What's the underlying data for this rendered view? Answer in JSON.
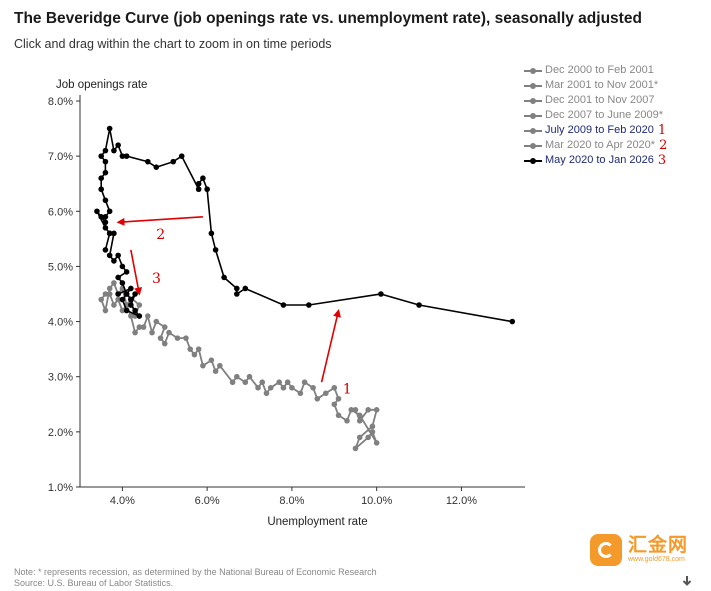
{
  "header": {
    "title": "The Beveridge Curve (job openings rate vs. unemployment rate), seasonally adjusted",
    "subtitle": "Click and drag within the chart to zoom in on time periods"
  },
  "chart_data": {
    "type": "scatter",
    "title": "The Beveridge Curve (job openings rate vs. unemployment rate), seasonally adjusted",
    "xlabel": "Unemployment rate",
    "ylabel": "Job openings rate",
    "xlim": [
      3.0,
      13.5
    ],
    "ylim": [
      1.0,
      8.0
    ],
    "xticks": [
      4.0,
      6.0,
      8.0,
      10.0,
      12.0
    ],
    "xtick_labels": [
      "4.0%",
      "6.0%",
      "8.0%",
      "10.0%",
      "12.0%"
    ],
    "yticks": [
      1.0,
      2.0,
      3.0,
      4.0,
      5.0,
      6.0,
      7.0,
      8.0
    ],
    "ytick_labels": [
      "1.0%",
      "2.0%",
      "3.0%",
      "4.0%",
      "5.0%",
      "6.0%",
      "7.0%",
      "8.0%"
    ],
    "legend_position": "top-right",
    "series": [
      {
        "name": "Dec 2000 to Feb 2001",
        "color": "#808080",
        "points": []
      },
      {
        "name": "Mar 2001 to Nov 2001*",
        "color": "#808080",
        "points": []
      },
      {
        "name": "Dec 2001 to Nov 2007",
        "color": "#808080",
        "points": []
      },
      {
        "name": "Dec 2007 to June 2009*",
        "color": "#808080",
        "points": []
      },
      {
        "name": "July 2009 to Feb 2020",
        "color": "#808080",
        "annotation": "1",
        "active": true,
        "points": [
          [
            9.5,
            2.4
          ],
          [
            9.6,
            2.2
          ],
          [
            9.8,
            2.4
          ],
          [
            10.0,
            2.4
          ],
          [
            9.9,
            2.1
          ],
          [
            9.6,
            1.9
          ],
          [
            9.5,
            1.7
          ],
          [
            9.8,
            1.9
          ],
          [
            9.9,
            2.0
          ],
          [
            10.0,
            1.8
          ],
          [
            9.6,
            2.3
          ],
          [
            9.4,
            2.4
          ],
          [
            9.3,
            2.2
          ],
          [
            9.1,
            2.3
          ],
          [
            9.0,
            2.5
          ],
          [
            9.1,
            2.6
          ],
          [
            9.0,
            2.8
          ],
          [
            8.8,
            2.7
          ],
          [
            8.6,
            2.6
          ],
          [
            8.5,
            2.8
          ],
          [
            8.3,
            2.9
          ],
          [
            8.2,
            2.7
          ],
          [
            8.0,
            2.8
          ],
          [
            7.9,
            2.9
          ],
          [
            7.8,
            2.8
          ],
          [
            7.7,
            2.9
          ],
          [
            7.5,
            2.8
          ],
          [
            7.4,
            2.7
          ],
          [
            7.3,
            2.9
          ],
          [
            7.2,
            2.8
          ],
          [
            7.0,
            3.0
          ],
          [
            6.9,
            2.9
          ],
          [
            6.7,
            3.0
          ],
          [
            6.6,
            2.9
          ],
          [
            6.3,
            3.2
          ],
          [
            6.2,
            3.1
          ],
          [
            6.1,
            3.3
          ],
          [
            5.9,
            3.2
          ],
          [
            5.8,
            3.5
          ],
          [
            5.7,
            3.4
          ],
          [
            5.6,
            3.5
          ],
          [
            5.5,
            3.7
          ],
          [
            5.3,
            3.7
          ],
          [
            5.1,
            3.8
          ],
          [
            5.0,
            3.6
          ],
          [
            4.9,
            3.7
          ],
          [
            5.0,
            3.9
          ],
          [
            4.8,
            4.0
          ],
          [
            4.7,
            3.8
          ],
          [
            4.6,
            4.1
          ],
          [
            4.5,
            3.9
          ],
          [
            4.4,
            3.9
          ],
          [
            4.3,
            3.8
          ],
          [
            4.2,
            4.1
          ],
          [
            4.1,
            4.3
          ],
          [
            4.0,
            4.2
          ],
          [
            3.9,
            4.4
          ],
          [
            3.8,
            4.3
          ],
          [
            3.7,
            4.5
          ],
          [
            3.6,
            4.5
          ],
          [
            3.5,
            4.4
          ],
          [
            3.6,
            4.2
          ],
          [
            3.7,
            4.6
          ],
          [
            3.8,
            4.7
          ],
          [
            3.9,
            4.5
          ],
          [
            4.0,
            4.6
          ],
          [
            4.1,
            4.3
          ],
          [
            4.2,
            4.4
          ],
          [
            4.3,
            4.1
          ],
          [
            4.4,
            4.3
          ],
          [
            4.1,
            4.5
          ]
        ]
      },
      {
        "name": "Mar 2020 to Apr 2020*",
        "color": "#808080",
        "annotation": "2",
        "points": []
      },
      {
        "name": "May 2020 to Jan 2026",
        "color": "#000000",
        "annotation": "3",
        "active": true,
        "points": [
          [
            13.2,
            4.0
          ],
          [
            11.0,
            4.3
          ],
          [
            10.1,
            4.5
          ],
          [
            8.4,
            4.3
          ],
          [
            7.8,
            4.3
          ],
          [
            6.9,
            4.6
          ],
          [
            6.7,
            4.5
          ],
          [
            6.7,
            4.6
          ],
          [
            6.4,
            4.8
          ],
          [
            6.2,
            5.3
          ],
          [
            6.1,
            5.6
          ],
          [
            6.0,
            6.4
          ],
          [
            5.9,
            6.6
          ],
          [
            5.8,
            6.5
          ],
          [
            5.8,
            6.4
          ],
          [
            5.4,
            7.0
          ],
          [
            5.2,
            6.9
          ],
          [
            4.8,
            6.8
          ],
          [
            4.6,
            6.9
          ],
          [
            4.1,
            7.0
          ],
          [
            4.0,
            7.0
          ],
          [
            3.9,
            7.2
          ],
          [
            3.8,
            7.1
          ],
          [
            3.7,
            7.5
          ],
          [
            3.6,
            7.1
          ],
          [
            3.5,
            7.0
          ],
          [
            3.6,
            6.9
          ],
          [
            3.6,
            6.7
          ],
          [
            3.5,
            6.6
          ],
          [
            3.5,
            6.4
          ],
          [
            3.6,
            6.2
          ],
          [
            3.7,
            6.0
          ],
          [
            3.6,
            5.9
          ],
          [
            3.6,
            5.8
          ],
          [
            3.5,
            5.9
          ],
          [
            3.4,
            6.0
          ],
          [
            3.6,
            5.7
          ],
          [
            3.7,
            5.6
          ],
          [
            3.6,
            5.3
          ],
          [
            3.7,
            5.6
          ],
          [
            3.8,
            5.6
          ],
          [
            3.7,
            5.2
          ],
          [
            3.8,
            5.1
          ],
          [
            3.9,
            5.2
          ],
          [
            4.0,
            5.0
          ],
          [
            4.1,
            4.9
          ],
          [
            3.9,
            4.8
          ],
          [
            4.0,
            4.7
          ],
          [
            4.1,
            4.5
          ],
          [
            4.2,
            4.4
          ],
          [
            4.3,
            4.5
          ],
          [
            4.2,
            4.3
          ],
          [
            4.3,
            4.2
          ],
          [
            4.4,
            4.1
          ],
          [
            4.1,
            4.2
          ],
          [
            4.0,
            4.4
          ],
          [
            4.2,
            4.6
          ],
          [
            3.9,
            4.5
          ]
        ]
      }
    ],
    "annotations": [
      {
        "label": "1",
        "at": [
          9.2,
          2.7
        ],
        "arrow_from": [
          8.7,
          2.9
        ],
        "arrow_to": [
          9.1,
          4.2
        ]
      },
      {
        "label": "2",
        "at": [
          4.8,
          5.5
        ],
        "arrow_from": [
          5.9,
          5.9
        ],
        "arrow_to": [
          3.9,
          5.8
        ]
      },
      {
        "label": "3",
        "at": [
          4.7,
          4.7
        ],
        "arrow_from": [
          4.2,
          5.3
        ],
        "arrow_to": [
          4.4,
          4.5
        ]
      }
    ]
  },
  "legend": {
    "items": [
      {
        "label": "Dec 2000 to Feb 2001",
        "num": "",
        "color": "#808080",
        "active": false
      },
      {
        "label": "Mar 2001 to Nov 2001*",
        "num": "",
        "color": "#808080",
        "active": false
      },
      {
        "label": "Dec 2001 to Nov 2007",
        "num": "",
        "color": "#808080",
        "active": false
      },
      {
        "label": "Dec 2007 to June 2009*",
        "num": "",
        "color": "#808080",
        "active": false
      },
      {
        "label": "July 2009 to Feb 2020",
        "num": "1",
        "color": "#808080",
        "active": true
      },
      {
        "label": "Mar 2020 to Apr 2020*",
        "num": "2",
        "color": "#808080",
        "active": false
      },
      {
        "label": "May 2020 to Jan 2026",
        "num": "3",
        "color": "#000000",
        "active": true
      }
    ]
  },
  "footer": {
    "note": "Note: * represents recession, as determined by the National Bureau of Economic Research",
    "source": "Source: U.S. Bureau of Labor Statistics."
  },
  "watermark": {
    "name": "汇金网",
    "url": "www.gold678.com"
  },
  "colors": {
    "arrow": "#e00000",
    "annotation": "#d00000",
    "axis": "#333333"
  }
}
